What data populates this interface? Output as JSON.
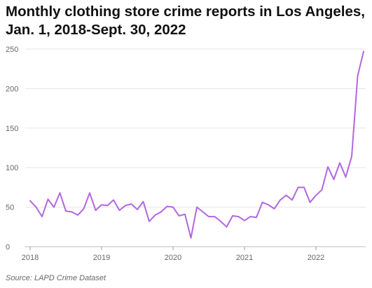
{
  "title_line1": "Monthly clothing store crime reports in Los Angeles,",
  "title_line2": "Jan. 1, 2018-Sept. 30, 2022",
  "source": "Source: LAPD Crime Dataset",
  "colors": {
    "line": "#b266e0",
    "grid": "#e5e5e5",
    "axis_text": "#666666"
  },
  "chart_data": {
    "type": "line",
    "title": "Monthly clothing store crime reports in Los Angeles, Jan. 1, 2018-Sept. 30, 2022",
    "xlabel": "",
    "ylabel": "",
    "ylim": [
      0,
      250
    ],
    "yticks": [
      "0",
      "50",
      "100",
      "150",
      "200",
      "250"
    ],
    "xticks": [
      "2018",
      "2019",
      "2020",
      "2021",
      "2022"
    ],
    "grid": true,
    "legend": "none",
    "x_start": "2018-01",
    "x_end": "2022-09",
    "series": [
      {
        "values": [
          58,
          50,
          38,
          60,
          50,
          68,
          45,
          44,
          40,
          48,
          68,
          46,
          53,
          52,
          59,
          46,
          52,
          54,
          47,
          57,
          32,
          40,
          44,
          51,
          50,
          39,
          41,
          11,
          50,
          44,
          38,
          38,
          32,
          25,
          39,
          38,
          33,
          38,
          37,
          56,
          53,
          48,
          59,
          65,
          59,
          75,
          75,
          56,
          65,
          72,
          101,
          85,
          106,
          88,
          114,
          216,
          247
        ]
      }
    ]
  }
}
